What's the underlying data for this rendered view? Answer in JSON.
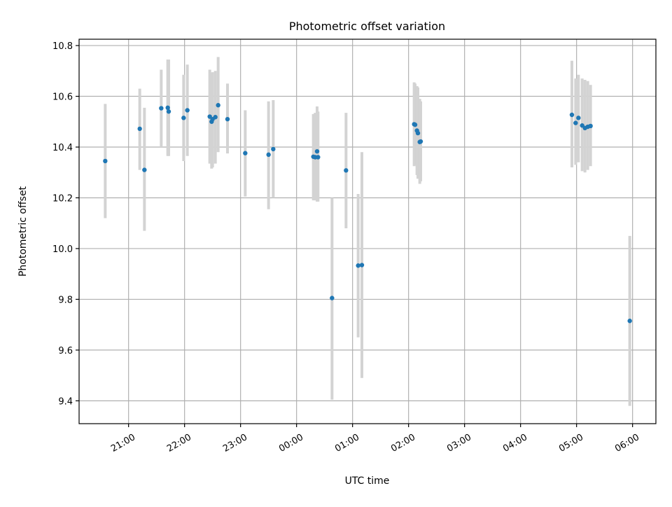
{
  "chart_data": {
    "type": "scatter",
    "title": "Photometric offset variation",
    "xlabel": "UTC time",
    "ylabel": "Photometric offset",
    "x_ticks": [
      "21:00",
      "22:00",
      "23:00",
      "00:00",
      "01:00",
      "02:00",
      "03:00",
      "04:00",
      "05:00",
      "06:00"
    ],
    "y_ticks": [
      "9.4",
      "9.6",
      "9.8",
      "10.0",
      "10.2",
      "10.4",
      "10.6",
      "10.8"
    ],
    "xlim": [
      "20:07",
      "06:25"
    ],
    "ylim": [
      9.31,
      10.825
    ],
    "grid": true,
    "colors": {
      "points": "#1f77b4",
      "error_bars": "#d3d3d3",
      "grid": "#b0b0b0"
    },
    "series": [
      {
        "points": [
          {
            "t": "20:35",
            "y": 10.345,
            "lo": 10.12,
            "hi": 10.57
          },
          {
            "t": "21:12",
            "y": 10.472,
            "lo": 10.31,
            "hi": 10.63
          },
          {
            "t": "21:17",
            "y": 10.31,
            "lo": 10.07,
            "hi": 10.555
          },
          {
            "t": "21:35",
            "y": 10.553,
            "lo": 10.4,
            "hi": 10.705
          },
          {
            "t": "21:42",
            "y": 10.555,
            "lo": 10.365,
            "hi": 10.745
          },
          {
            "t": "21:43",
            "y": 10.54,
            "lo": 10.365,
            "hi": 10.745
          },
          {
            "t": "21:59",
            "y": 10.515,
            "lo": 10.345,
            "hi": 10.685
          },
          {
            "t": "22:03",
            "y": 10.545,
            "lo": 10.365,
            "hi": 10.725
          },
          {
            "t": "22:27",
            "y": 10.52,
            "lo": 10.335,
            "hi": 10.705
          },
          {
            "t": "22:29",
            "y": 10.5,
            "lo": 10.315,
            "hi": 10.69
          },
          {
            "t": "22:30",
            "y": 10.51,
            "lo": 10.32,
            "hi": 10.695
          },
          {
            "t": "22:33",
            "y": 10.518,
            "lo": 10.335,
            "hi": 10.7
          },
          {
            "t": "22:36",
            "y": 10.565,
            "lo": 10.38,
            "hi": 10.755
          },
          {
            "t": "22:46",
            "y": 10.51,
            "lo": 10.375,
            "hi": 10.65
          },
          {
            "t": "23:05",
            "y": 10.376,
            "lo": 10.205,
            "hi": 10.545
          },
          {
            "t": "23:30",
            "y": 10.37,
            "lo": 10.155,
            "hi": 10.58
          },
          {
            "t": "23:35",
            "y": 10.392,
            "lo": 10.2,
            "hi": 10.585
          },
          {
            "t": "00:18",
            "y": 10.362,
            "lo": 10.19,
            "hi": 10.53
          },
          {
            "t": "00:20",
            "y": 10.36,
            "lo": 10.19,
            "hi": 10.535
          },
          {
            "t": "00:22",
            "y": 10.383,
            "lo": 10.185,
            "hi": 10.56
          },
          {
            "t": "00:23",
            "y": 10.36,
            "lo": 10.185,
            "hi": 10.54
          },
          {
            "t": "00:38",
            "y": 9.805,
            "lo": 9.405,
            "hi": 10.2
          },
          {
            "t": "00:53",
            "y": 10.308,
            "lo": 10.08,
            "hi": 10.535
          },
          {
            "t": "01:06",
            "y": 9.933,
            "lo": 9.65,
            "hi": 10.215
          },
          {
            "t": "01:10",
            "y": 9.935,
            "lo": 9.49,
            "hi": 10.38
          },
          {
            "t": "02:06",
            "y": 10.49,
            "lo": 10.325,
            "hi": 10.655
          },
          {
            "t": "02:07",
            "y": 10.488,
            "lo": 10.33,
            "hi": 10.65
          },
          {
            "t": "02:09",
            "y": 10.465,
            "lo": 10.29,
            "hi": 10.64
          },
          {
            "t": "02:10",
            "y": 10.455,
            "lo": 10.275,
            "hi": 10.635
          },
          {
            "t": "02:12",
            "y": 10.42,
            "lo": 10.255,
            "hi": 10.59
          },
          {
            "t": "02:13",
            "y": 10.422,
            "lo": 10.265,
            "hi": 10.58
          },
          {
            "t": "04:55",
            "y": 10.527,
            "lo": 10.32,
            "hi": 10.74
          },
          {
            "t": "04:59",
            "y": 10.495,
            "lo": 10.33,
            "hi": 10.67
          },
          {
            "t": "05:02",
            "y": 10.515,
            "lo": 10.34,
            "hi": 10.685
          },
          {
            "t": "05:06",
            "y": 10.485,
            "lo": 10.305,
            "hi": 10.67
          },
          {
            "t": "05:09",
            "y": 10.475,
            "lo": 10.3,
            "hi": 10.665
          },
          {
            "t": "05:12",
            "y": 10.48,
            "lo": 10.31,
            "hi": 10.66
          },
          {
            "t": "05:15",
            "y": 10.483,
            "lo": 10.325,
            "hi": 10.645
          },
          {
            "t": "05:57",
            "y": 9.715,
            "lo": 9.38,
            "hi": 10.05
          }
        ]
      }
    ]
  }
}
